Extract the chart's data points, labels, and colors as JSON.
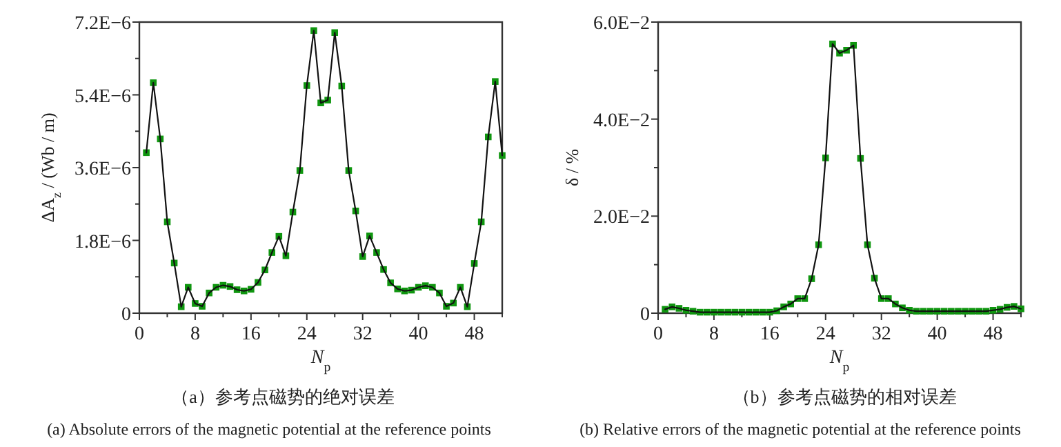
{
  "chart_data": [
    {
      "type": "line",
      "title": "（a）参考点磁势的绝对误差",
      "subtitle": "(a) Absolute errors of the magnetic potential at the reference points",
      "xlabel": "N$_{p}$",
      "ylabel": "ΔA$_{z}$ / (Wb / m)",
      "marker": "square",
      "line_style": "solid",
      "x": [
        1,
        2,
        3,
        4,
        5,
        6,
        7,
        8,
        9,
        10,
        11,
        12,
        13,
        14,
        15,
        16,
        17,
        18,
        19,
        20,
        21,
        22,
        23,
        24,
        25,
        26,
        27,
        28,
        29,
        30,
        31,
        32,
        33,
        34,
        35,
        36,
        37,
        38,
        39,
        40,
        41,
        42,
        43,
        44,
        45,
        46,
        47,
        48,
        49,
        50,
        51,
        52
      ],
      "series": [
        {
          "color": "#0f960f",
          "values": [
            3.97e-06,
            5.7e-06,
            4.31e-06,
            2.26e-06,
            1.24e-06,
            1.6e-07,
            6.4e-07,
            2.4e-07,
            1.7e-07,
            5e-07,
            6.4e-07,
            6.9e-07,
            6.6e-07,
            5.8e-07,
            5.5e-07,
            5.9e-07,
            7.6e-07,
            1.07e-06,
            1.5e-06,
            1.9e-06,
            1.42e-06,
            2.5e-06,
            3.53e-06,
            5.63e-06,
            6.99e-06,
            5.2e-06,
            5.27e-06,
            6.94e-06,
            5.62e-06,
            3.53e-06,
            2.53e-06,
            1.4e-06,
            1.91e-06,
            1.5e-06,
            1.08e-06,
            7.5e-07,
            6e-07,
            5.5e-07,
            5.7e-07,
            6.4e-07,
            6.8e-07,
            6.4e-07,
            5e-07,
            1.7e-07,
            2.5e-07,
            6.4e-07,
            1.6e-07,
            1.23e-06,
            2.26e-06,
            4.36e-06,
            5.73e-06,
            3.9e-06
          ]
        }
      ],
      "xlim": [
        0,
        52
      ],
      "xticks": [
        0,
        8,
        16,
        24,
        32,
        40,
        48
      ],
      "ylim": [
        0,
        7.2e-06
      ],
      "yticks": [
        0,
        {
          "value": 1.8e-06,
          "label": "1.8E−6"
        },
        {
          "value": 3.6e-06,
          "label": "3.6E−6"
        },
        {
          "value": 5.4e-06,
          "label": "5.4E−6"
        },
        {
          "value": 7.2e-06,
          "label": "7.2E−6"
        }
      ]
    },
    {
      "type": "line",
      "title": "（b）参考点磁势的相对误差",
      "subtitle": "(b) Relative errors of the magnetic potential at the reference points",
      "xlabel": "N$_{p}$",
      "ylabel": "δ / %",
      "marker": "square",
      "line_style": "solid",
      "x": [
        1,
        2,
        3,
        4,
        5,
        6,
        7,
        8,
        9,
        10,
        11,
        12,
        13,
        14,
        15,
        16,
        17,
        18,
        19,
        20,
        21,
        22,
        23,
        24,
        25,
        26,
        27,
        28,
        29,
        30,
        31,
        32,
        33,
        34,
        35,
        36,
        37,
        38,
        39,
        40,
        41,
        42,
        43,
        44,
        45,
        46,
        47,
        48,
        49,
        50,
        51,
        52
      ],
      "series": [
        {
          "color": "#0f960f",
          "values": [
            0.0008,
            0.0013,
            0.001,
            0.0006,
            0.0004,
            0.0002,
            0.0002,
            0.0002,
            0.0002,
            0.0002,
            0.0002,
            0.0002,
            0.0002,
            0.0002,
            0.0002,
            0.0002,
            0.0005,
            0.0013,
            0.0019,
            0.003,
            0.003,
            0.0071,
            0.0141,
            0.032,
            0.0555,
            0.0536,
            0.0542,
            0.0552,
            0.0319,
            0.0141,
            0.0072,
            0.003,
            0.003,
            0.0019,
            0.0011,
            0.0006,
            0.0004,
            0.0004,
            0.0004,
            0.0004,
            0.0004,
            0.0004,
            0.0004,
            0.0004,
            0.0004,
            0.0004,
            0.0004,
            0.0006,
            0.0008,
            0.0012,
            0.0014,
            0.0009
          ]
        }
      ],
      "xlim": [
        0,
        52
      ],
      "xticks": [
        0,
        8,
        16,
        24,
        32,
        40,
        48
      ],
      "ylim": [
        0,
        0.06
      ],
      "yticks": [
        0,
        {
          "value": 0.02,
          "label": "2.0E−2"
        },
        {
          "value": 0.04,
          "label": "4.0E−2"
        },
        {
          "value": 0.06,
          "label": "6.0E−2"
        }
      ]
    }
  ]
}
